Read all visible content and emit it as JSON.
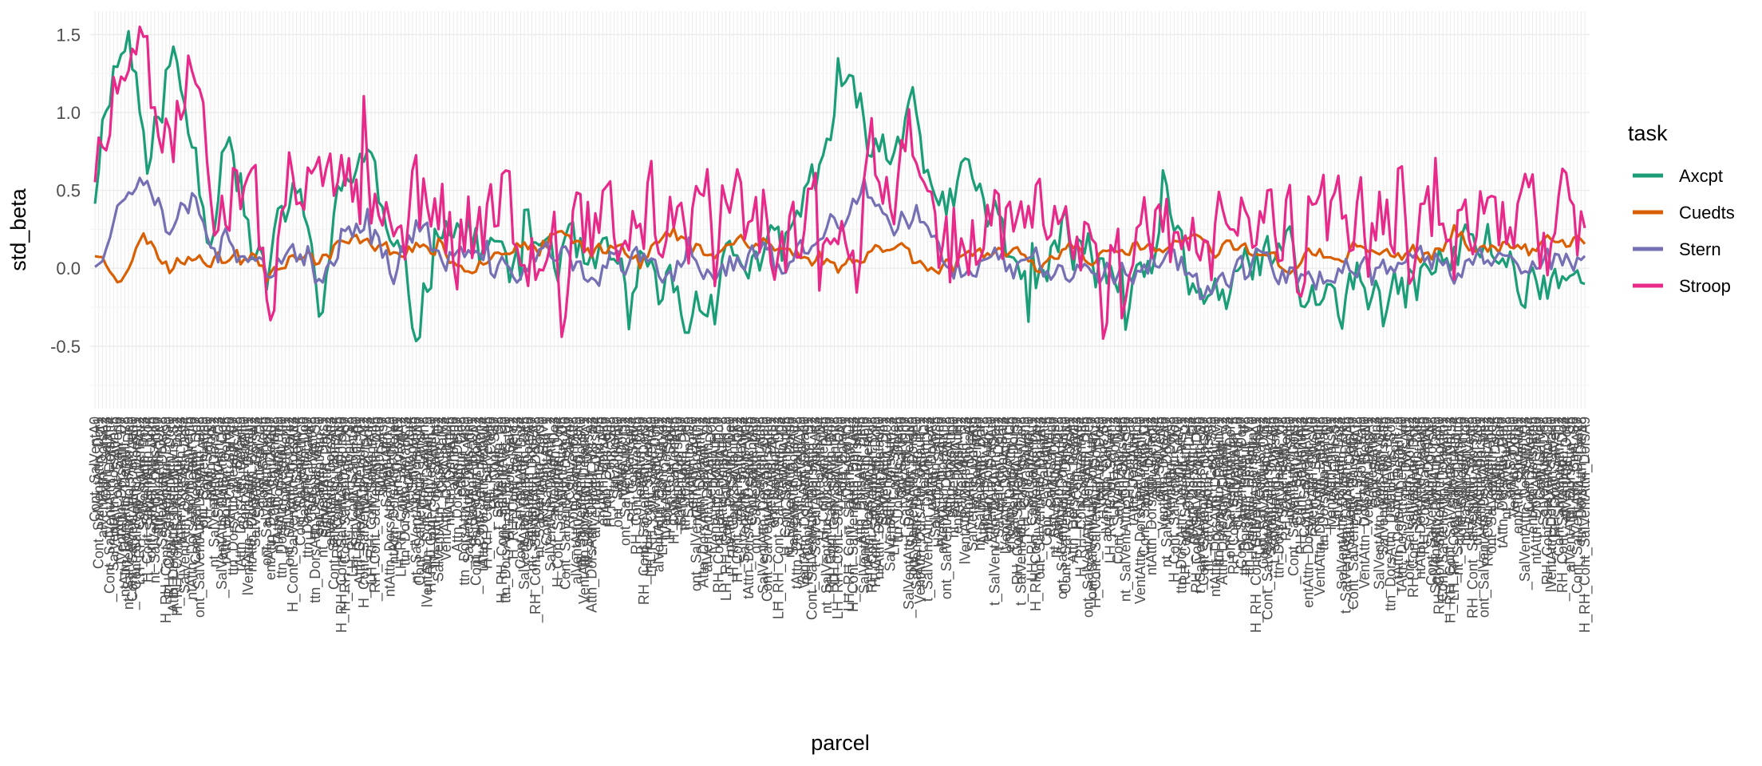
{
  "chart_data": {
    "type": "line",
    "xlabel": "parcel",
    "ylabel": "std_beta",
    "ylim": [
      -0.9,
      1.65
    ],
    "y_ticks": [
      -0.5,
      0.0,
      0.5,
      1.0,
      1.5
    ],
    "y_tick_labels": [
      "-0.5",
      "0.0",
      "0.5",
      "1.0",
      "1.5"
    ],
    "grid": true,
    "legend": {
      "title": "task",
      "placement": "right",
      "entries": [
        "Axcpt",
        "Cuedts",
        "Stern",
        "Stroop"
      ]
    },
    "n_categories": 400,
    "x_tick_labels_note": "400 categorical parcel names drawn overlapping and illegible",
    "series": [
      {
        "name": "Axcpt",
        "color": "#1B9E77",
        "seed": 11,
        "anchors": [
          [
            0,
            0.5
          ],
          [
            5,
            1.2
          ],
          [
            14,
            1.5
          ],
          [
            22,
            0.6
          ],
          [
            30,
            1.35
          ],
          [
            38,
            0.9
          ],
          [
            46,
            0.3
          ],
          [
            54,
            1.0
          ],
          [
            62,
            0.2
          ],
          [
            70,
            -0.1
          ],
          [
            80,
            0.6
          ],
          [
            90,
            -0.2
          ],
          [
            100,
            0.5
          ],
          [
            110,
            0.8
          ],
          [
            120,
            0.0
          ],
          [
            130,
            -0.3
          ],
          [
            140,
            0.4
          ],
          [
            150,
            0.2
          ],
          [
            160,
            0.1
          ],
          [
            170,
            0.0
          ],
          [
            180,
            0.2
          ],
          [
            190,
            0.1
          ],
          [
            200,
            -0.05
          ],
          [
            210,
            0.0
          ],
          [
            220,
            -0.2
          ],
          [
            230,
            -0.1
          ],
          [
            240,
            -0.35
          ],
          [
            250,
            0.0
          ],
          [
            260,
            0.1
          ],
          [
            270,
            0.0
          ],
          [
            280,
            0.2
          ],
          [
            290,
            0.6
          ],
          [
            300,
            1.1
          ],
          [
            310,
            0.9
          ],
          [
            320,
            0.7
          ],
          [
            330,
            1.2
          ],
          [
            340,
            0.2
          ],
          [
            350,
            0.6
          ],
          [
            360,
            0.4
          ],
          [
            370,
            0.1
          ],
          [
            380,
            -0.1
          ],
          [
            390,
            0.2
          ],
          [
            400,
            0.1
          ],
          [
            410,
            -0.1
          ],
          [
            420,
            -0.2
          ],
          [
            430,
            0.3
          ],
          [
            440,
            0.0
          ],
          [
            450,
            -0.15
          ],
          [
            460,
            -0.2
          ],
          [
            470,
            0.1
          ],
          [
            480,
            0.0
          ],
          [
            490,
            -0.2
          ],
          [
            500,
            -0.25
          ],
          [
            510,
            -0.1
          ],
          [
            520,
            -0.3
          ],
          [
            530,
            -0.1
          ],
          [
            540,
            0.0
          ],
          [
            550,
            0.1
          ],
          [
            560,
            0.2
          ],
          [
            570,
            0.0
          ],
          [
            580,
            -0.1
          ],
          [
            590,
            0.0
          ],
          [
            600,
            -0.1
          ]
        ],
        "noise": 0.3
      },
      {
        "name": "Cuedts",
        "color": "#D95F02",
        "seed": 23,
        "anchors": [
          [
            0,
            0.1
          ],
          [
            10,
            -0.05
          ],
          [
            20,
            0.2
          ],
          [
            30,
            0.0
          ],
          [
            40,
            0.1
          ],
          [
            50,
            0.05
          ],
          [
            60,
            0.1
          ],
          [
            70,
            0.0
          ],
          [
            80,
            0.1
          ],
          [
            90,
            0.05
          ],
          [
            100,
            0.15
          ],
          [
            110,
            0.2
          ],
          [
            120,
            0.1
          ],
          [
            130,
            0.15
          ],
          [
            140,
            0.1
          ],
          [
            150,
            0.0
          ],
          [
            160,
            0.1
          ],
          [
            170,
            0.15
          ],
          [
            180,
            0.1
          ],
          [
            190,
            0.2
          ],
          [
            200,
            0.1
          ],
          [
            210,
            0.15
          ],
          [
            220,
            0.1
          ],
          [
            230,
            0.2
          ],
          [
            240,
            0.15
          ],
          [
            250,
            0.1
          ],
          [
            260,
            0.2
          ],
          [
            270,
            0.15
          ],
          [
            280,
            0.1
          ],
          [
            290,
            0.05
          ],
          [
            300,
            0.0
          ],
          [
            310,
            0.1
          ],
          [
            320,
            0.15
          ],
          [
            330,
            0.1
          ],
          [
            340,
            0.0
          ],
          [
            350,
            0.1
          ],
          [
            360,
            0.05
          ],
          [
            370,
            0.1
          ],
          [
            380,
            0.0
          ],
          [
            390,
            0.15
          ],
          [
            400,
            0.1
          ],
          [
            410,
            0.05
          ],
          [
            420,
            0.15
          ],
          [
            430,
            0.1
          ],
          [
            440,
            0.2
          ],
          [
            450,
            0.1
          ],
          [
            460,
            0.15
          ],
          [
            470,
            0.1
          ],
          [
            480,
            0.0
          ],
          [
            490,
            0.1
          ],
          [
            500,
            0.05
          ],
          [
            510,
            0.15
          ],
          [
            520,
            0.1
          ],
          [
            530,
            0.05
          ],
          [
            540,
            0.1
          ],
          [
            550,
            0.2
          ],
          [
            560,
            0.1
          ],
          [
            570,
            0.15
          ],
          [
            580,
            0.1
          ],
          [
            590,
            0.2
          ],
          [
            600,
            0.15
          ]
        ],
        "noise": 0.08
      },
      {
        "name": "Stern",
        "color": "#7570B3",
        "seed": 37,
        "anchors": [
          [
            0,
            0.05
          ],
          [
            10,
            0.4
          ],
          [
            20,
            0.7
          ],
          [
            30,
            0.3
          ],
          [
            40,
            0.5
          ],
          [
            50,
            0.1
          ],
          [
            60,
            0.2
          ],
          [
            70,
            0.0
          ],
          [
            80,
            0.05
          ],
          [
            90,
            -0.1
          ],
          [
            100,
            0.2
          ],
          [
            110,
            0.35
          ],
          [
            120,
            0.0
          ],
          [
            130,
            0.3
          ],
          [
            140,
            0.05
          ],
          [
            150,
            0.1
          ],
          [
            160,
            -0.05
          ],
          [
            170,
            0.0
          ],
          [
            180,
            0.1
          ],
          [
            190,
            0.05
          ],
          [
            200,
            -0.05
          ],
          [
            210,
            0.0
          ],
          [
            220,
            0.05
          ],
          [
            230,
            -0.1
          ],
          [
            240,
            0.1
          ],
          [
            250,
            0.0
          ],
          [
            260,
            0.05
          ],
          [
            270,
            0.1
          ],
          [
            280,
            0.0
          ],
          [
            290,
            0.2
          ],
          [
            300,
            0.3
          ],
          [
            310,
            0.5
          ],
          [
            320,
            0.2
          ],
          [
            330,
            0.3
          ],
          [
            340,
            0.1
          ],
          [
            350,
            0.0
          ],
          [
            360,
            0.1
          ],
          [
            370,
            0.0
          ],
          [
            380,
            0.05
          ],
          [
            390,
            0.0
          ],
          [
            400,
            0.05
          ],
          [
            410,
            -0.05
          ],
          [
            420,
            0.0
          ],
          [
            430,
            0.1
          ],
          [
            440,
            0.0
          ],
          [
            450,
            -0.1
          ],
          [
            460,
            0.0
          ],
          [
            470,
            0.05
          ],
          [
            480,
            -0.05
          ],
          [
            490,
            -0.1
          ],
          [
            500,
            0.0
          ],
          [
            510,
            0.05
          ],
          [
            520,
            -0.05
          ],
          [
            530,
            0.0
          ],
          [
            540,
            0.05
          ],
          [
            550,
            0.0
          ],
          [
            560,
            0.05
          ],
          [
            570,
            0.1
          ],
          [
            580,
            0.0
          ],
          [
            590,
            0.05
          ],
          [
            600,
            0.0
          ]
        ],
        "noise": 0.15
      },
      {
        "name": "Stroop",
        "color": "#E7298A",
        "seed": 51,
        "anchors": [
          [
            0,
            0.7
          ],
          [
            10,
            1.1
          ],
          [
            20,
            1.3
          ],
          [
            30,
            0.8
          ],
          [
            40,
            1.2
          ],
          [
            50,
            0.5
          ],
          [
            60,
            0.4
          ],
          [
            70,
            0.0
          ],
          [
            80,
            0.5
          ],
          [
            90,
            0.3
          ],
          [
            100,
            0.4
          ],
          [
            110,
            0.6
          ],
          [
            120,
            0.2
          ],
          [
            130,
            0.4
          ],
          [
            140,
            0.3
          ],
          [
            150,
            0.2
          ],
          [
            160,
            0.4
          ],
          [
            170,
            0.3
          ],
          [
            180,
            0.2
          ],
          [
            190,
            0.1
          ],
          [
            200,
            0.3
          ],
          [
            210,
            0.2
          ],
          [
            220,
            0.4
          ],
          [
            230,
            0.3
          ],
          [
            240,
            0.2
          ],
          [
            250,
            0.5
          ],
          [
            260,
            0.2
          ],
          [
            270,
            0.3
          ],
          [
            280,
            0.1
          ],
          [
            290,
            0.2
          ],
          [
            300,
            0.3
          ],
          [
            310,
            0.6
          ],
          [
            320,
            0.7
          ],
          [
            330,
            0.8
          ],
          [
            340,
            0.3
          ],
          [
            350,
            0.2
          ],
          [
            360,
            0.3
          ],
          [
            370,
            0.2
          ],
          [
            380,
            0.1
          ],
          [
            390,
            0.3
          ],
          [
            400,
            0.2
          ],
          [
            410,
            0.1
          ],
          [
            420,
            0.2
          ],
          [
            430,
            0.3
          ],
          [
            440,
            0.1
          ],
          [
            450,
            0.2
          ],
          [
            460,
            0.3
          ],
          [
            470,
            0.1
          ],
          [
            480,
            0.2
          ],
          [
            490,
            0.1
          ],
          [
            500,
            0.2
          ],
          [
            510,
            0.3
          ],
          [
            520,
            0.2
          ],
          [
            530,
            0.1
          ],
          [
            540,
            0.3
          ],
          [
            550,
            0.2
          ],
          [
            560,
            0.3
          ],
          [
            570,
            0.2
          ],
          [
            580,
            0.3
          ],
          [
            590,
            0.2
          ],
          [
            600,
            0.4
          ]
        ],
        "noise": 0.55
      }
    ]
  },
  "colors": {
    "panel_background": "#ffffff",
    "grid_major": "#ebebeb",
    "grid_minor": "#f3f3f3",
    "tick_text": "#4d4d4d"
  }
}
